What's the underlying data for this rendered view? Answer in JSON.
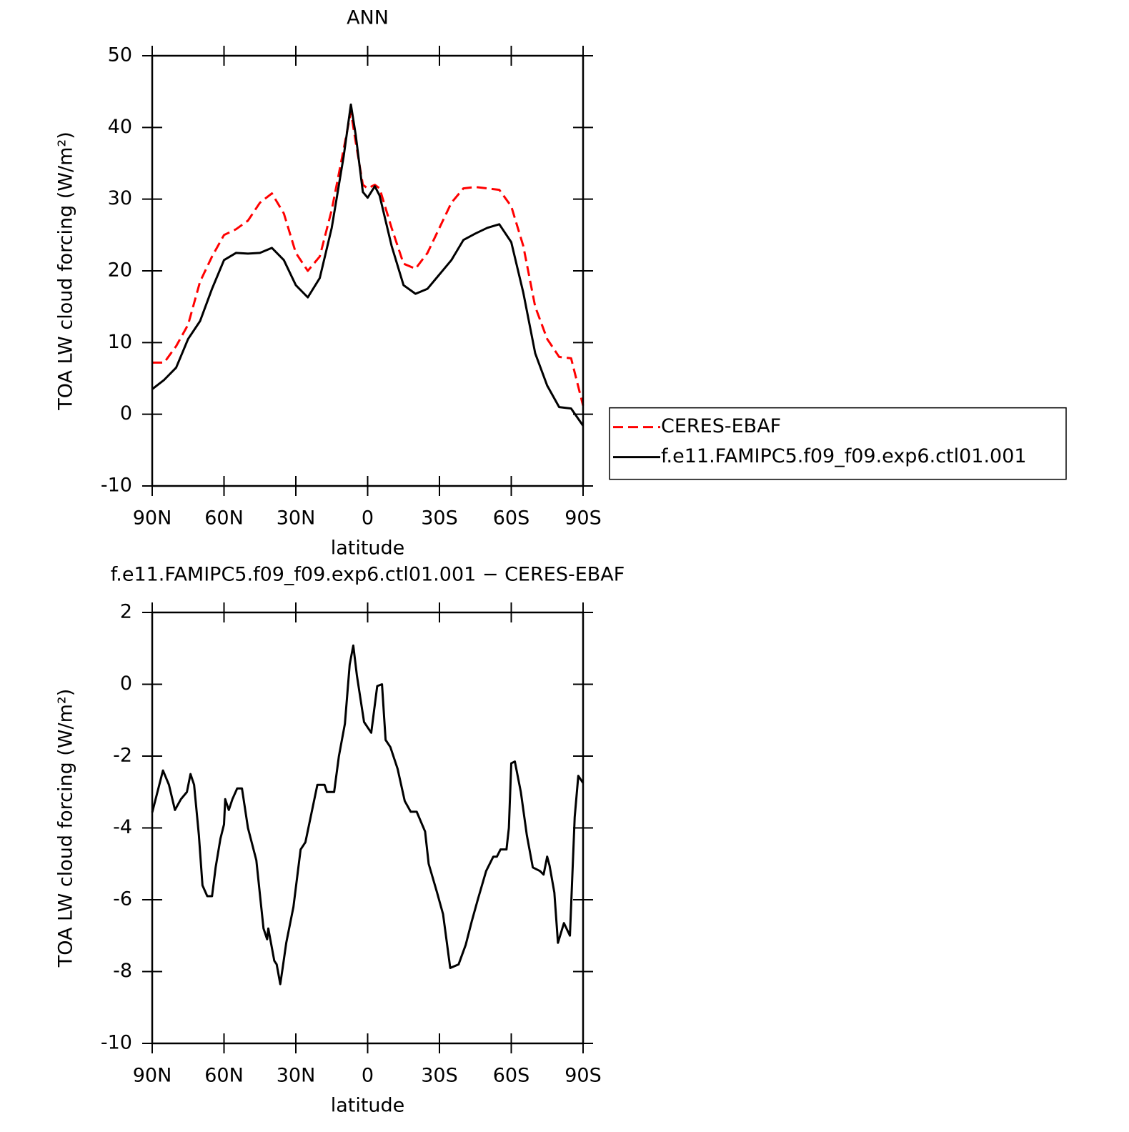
{
  "chart_data": [
    {
      "type": "line",
      "title": "ANN",
      "x_label": "latitude",
      "y_label": "TOA LW cloud forcing (W/m²)",
      "xlim": [
        90,
        -90
      ],
      "ylim": [
        -10,
        50
      ],
      "xticks": [
        {
          "value": 90,
          "label": "90N"
        },
        {
          "value": 60,
          "label": "60N"
        },
        {
          "value": 30,
          "label": "30N"
        },
        0,
        {
          "value": -30,
          "label": "30S"
        },
        {
          "value": -60,
          "label": "60S"
        },
        {
          "value": -90,
          "label": "90S"
        }
      ],
      "yticks": [
        -10,
        0,
        10,
        20,
        30,
        40,
        50
      ],
      "legend": "right",
      "x": [
        90,
        85,
        80,
        75,
        70,
        65,
        60,
        55,
        50,
        45,
        40,
        35,
        30,
        25,
        20,
        15,
        10,
        7,
        5,
        2,
        0,
        -3,
        -5,
        -10,
        -15,
        -20,
        -25,
        -30,
        -35,
        -40,
        -45,
        -50,
        -55,
        -60,
        -65,
        -70,
        -75,
        -80,
        -85,
        -90
      ],
      "series": [
        {
          "name": "CERES-EBAF",
          "color": "#ff0000",
          "linestyle": "dashed",
          "values": [
            7.2,
            7.2,
            9.5,
            12.5,
            18.5,
            22,
            25,
            25.8,
            27,
            29.5,
            30.8,
            28,
            22.5,
            20,
            22,
            28.5,
            37,
            42.2,
            38,
            32,
            31.5,
            32,
            31.5,
            26,
            21,
            20.3,
            22.5,
            26,
            29.5,
            31.5,
            31.7,
            31.5,
            31.3,
            29,
            23.5,
            15,
            10.5,
            8,
            7.8,
            1.2
          ]
        },
        {
          "name": "f.e11.FAMIPC5.f09_f09.exp6.ctl01.001",
          "color": "#000000",
          "linestyle": "solid",
          "values": [
            3.5,
            4.8,
            6.5,
            10.5,
            13,
            17.5,
            21.5,
            22.5,
            22.4,
            22.5,
            23.2,
            21.5,
            18,
            16.3,
            19,
            26,
            36,
            43.2,
            39,
            31,
            30.2,
            31.8,
            30.5,
            23.5,
            18,
            16.8,
            17.5,
            19.5,
            21.5,
            24.3,
            25.2,
            26,
            26.5,
            24,
            17,
            8.5,
            4,
            1,
            0.8,
            -1.6
          ]
        }
      ]
    },
    {
      "type": "line",
      "title": "f.e11.FAMIPC5.f09_f09.exp6.ctl01.001 − CERES-EBAF",
      "x_label": "latitude",
      "y_label": "TOA LW cloud forcing (W/m²)",
      "xlim": [
        90,
        -90
      ],
      "ylim": [
        -10,
        2
      ],
      "xticks": [
        {
          "value": 90,
          "label": "90N"
        },
        {
          "value": 60,
          "label": "60N"
        },
        {
          "value": 30,
          "label": "30N"
        },
        0,
        {
          "value": -30,
          "label": "30S"
        },
        {
          "value": -60,
          "label": "60S"
        },
        {
          "value": -90,
          "label": "90S"
        }
      ],
      "yticks": [
        -10,
        -8,
        -6,
        -4,
        -2,
        0,
        2
      ],
      "color": "#000000",
      "x": [
        90,
        85.5,
        83,
        80.5,
        78,
        75.5,
        74,
        72.5,
        70.5,
        69,
        67,
        65,
        63.5,
        61.5,
        60,
        59.5,
        58,
        56.5,
        54.5,
        52.5,
        50,
        46.5,
        43.5,
        42,
        41.5,
        39,
        38,
        36.5,
        35.5,
        34,
        31,
        28,
        26,
        23.5,
        21,
        19.5,
        18,
        17,
        14,
        12,
        9.5,
        7.5,
        6,
        4.5,
        1.5,
        -1.5,
        -4,
        -6,
        -7.5,
        -9.5,
        -12.5,
        -15.5,
        -18,
        -20.5,
        -24,
        -25.5,
        -29,
        -31.5,
        -34.5,
        -38,
        -41,
        -43.5,
        -46,
        -49.5,
        -52.5,
        -54,
        -55.5,
        -58,
        -59,
        -60,
        -61.5,
        -64,
        -66.5,
        -69,
        -72,
        -73.5,
        -75,
        -76,
        -78,
        -79.5,
        -82,
        -84.5,
        -86.5,
        -88,
        -90
      ],
      "values": [
        -3.57,
        -2.4,
        -2.8,
        -3.5,
        -3.2,
        -3.0,
        -2.5,
        -2.8,
        -4.2,
        -5.6,
        -5.9,
        -5.9,
        -5.1,
        -4.3,
        -3.9,
        -3.2,
        -3.5,
        -3.2,
        -2.9,
        -2.9,
        -4.0,
        -4.9,
        -6.8,
        -7.1,
        -6.8,
        -7.7,
        -7.8,
        -8.35,
        -7.9,
        -7.2,
        -6.2,
        -4.6,
        -4.4,
        -3.6,
        -2.8,
        -2.8,
        -2.8,
        -3.0,
        -3.0,
        -2.0,
        -1.1,
        0.55,
        1.08,
        0.25,
        -1.05,
        -1.35,
        -0.05,
        0.0,
        -1.55,
        -1.75,
        -2.35,
        -3.25,
        -3.55,
        -3.55,
        -4.1,
        -5.0,
        -5.8,
        -6.4,
        -7.9,
        -7.8,
        -7.25,
        -6.6,
        -6.0,
        -5.2,
        -4.8,
        -4.8,
        -4.6,
        -4.6,
        -4.0,
        -2.2,
        -2.15,
        -3.0,
        -4.2,
        -5.1,
        -5.2,
        -5.3,
        -4.8,
        -5.05,
        -5.8,
        -7.2,
        -6.65,
        -7.0,
        -3.7,
        -2.55,
        -2.75
      ]
    }
  ]
}
